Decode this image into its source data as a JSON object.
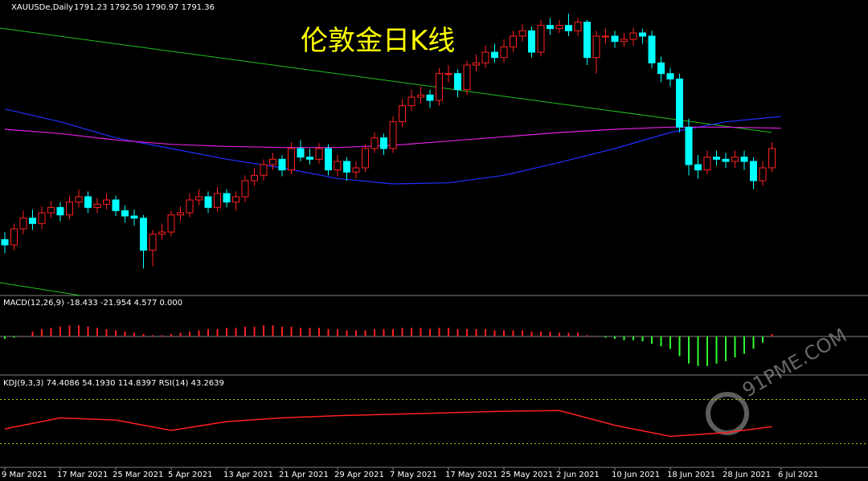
{
  "chart_data": {
    "type": "candlestick",
    "title": "伦敦金日K线",
    "symbol": "XAUUSDe,Daily",
    "quote": "1791.23 1792.50 1790.97 1791.36",
    "watermark": "91PME.COM",
    "categories": [
      "9 Mar 2021",
      "17 Mar 2021",
      "25 Mar 2021",
      "5 Apr 2021",
      "13 Apr 2021",
      "21 Apr 2021",
      "29 Apr 2021",
      "7 May 2021",
      "17 May 2021",
      "25 May 2021",
      "2 Jun 2021",
      "10 Jun 2021",
      "18 Jun 2021",
      "28 Jun 2021",
      "6 Jul 2021"
    ],
    "ylim": [
      1655,
      1925
    ],
    "up_color": "#ff2020",
    "down_color": "#00ffff",
    "open": [
      1705,
      1700,
      1715,
      1725,
      1720,
      1730,
      1735,
      1728,
      1740,
      1745,
      1735,
      1738,
      1742,
      1732,
      1727,
      1725,
      1695,
      1710,
      1712,
      1728,
      1730,
      1742,
      1745,
      1735,
      1748,
      1740,
      1745,
      1760,
      1765,
      1775,
      1780,
      1770,
      1790,
      1782,
      1780,
      1790,
      1770,
      1778,
      1768,
      1772,
      1790,
      1800,
      1790,
      1815,
      1830,
      1838,
      1840,
      1835,
      1860,
      1860,
      1845,
      1868,
      1870,
      1880,
      1875,
      1885,
      1895,
      1900,
      1880,
      1905,
      1902,
      1905,
      1900,
      1908,
      1875,
      1895,
      1895,
      1890,
      1892,
      1898,
      1895,
      1870,
      1860,
      1855,
      1810,
      1775,
      1770,
      1782,
      1780,
      1778,
      1782,
      1778,
      1760,
      1772
    ],
    "high": [
      1712,
      1720,
      1732,
      1733,
      1736,
      1741,
      1740,
      1746,
      1752,
      1750,
      1744,
      1748,
      1746,
      1737,
      1733,
      1728,
      1714,
      1720,
      1732,
      1736,
      1748,
      1752,
      1750,
      1754,
      1752,
      1750,
      1765,
      1772,
      1780,
      1786,
      1784,
      1796,
      1798,
      1790,
      1795,
      1794,
      1784,
      1782,
      1778,
      1794,
      1805,
      1804,
      1820,
      1836,
      1845,
      1848,
      1845,
      1865,
      1868,
      1864,
      1872,
      1878,
      1886,
      1888,
      1892,
      1900,
      1906,
      1904,
      1910,
      1912,
      1910,
      1916,
      1912,
      1910,
      1900,
      1902,
      1900,
      1898,
      1903,
      1902,
      1900,
      1876,
      1865,
      1860,
      1818,
      1784,
      1788,
      1788,
      1786,
      1788,
      1788,
      1782,
      1778,
      1796
    ],
    "low": [
      1692,
      1695,
      1710,
      1714,
      1715,
      1725,
      1722,
      1724,
      1735,
      1730,
      1730,
      1733,
      1727,
      1721,
      1718,
      1678,
      1680,
      1705,
      1708,
      1722,
      1726,
      1737,
      1730,
      1731,
      1735,
      1732,
      1740,
      1755,
      1760,
      1770,
      1764,
      1766,
      1778,
      1775,
      1776,
      1765,
      1764,
      1760,
      1762,
      1768,
      1786,
      1784,
      1786,
      1810,
      1825,
      1832,
      1828,
      1830,
      1852,
      1838,
      1840,
      1862,
      1865,
      1870,
      1870,
      1880,
      1890,
      1875,
      1876,
      1896,
      1898,
      1895,
      1895,
      1868,
      1860,
      1888,
      1884,
      1885,
      1886,
      1888,
      1865,
      1852,
      1848,
      1805,
      1765,
      1762,
      1766,
      1774,
      1772,
      1772,
      1770,
      1752,
      1755,
      1768
    ],
    "close": [
      1700,
      1715,
      1725,
      1720,
      1730,
      1735,
      1728,
      1740,
      1745,
      1735,
      1738,
      1742,
      1732,
      1727,
      1725,
      1695,
      1710,
      1712,
      1728,
      1730,
      1742,
      1745,
      1735,
      1748,
      1740,
      1745,
      1760,
      1765,
      1775,
      1780,
      1770,
      1790,
      1782,
      1780,
      1790,
      1770,
      1778,
      1768,
      1772,
      1790,
      1800,
      1790,
      1815,
      1830,
      1838,
      1840,
      1835,
      1860,
      1860,
      1845,
      1868,
      1870,
      1880,
      1875,
      1885,
      1895,
      1900,
      1880,
      1905,
      1902,
      1905,
      1900,
      1908,
      1875,
      1895,
      1895,
      1890,
      1892,
      1898,
      1895,
      1870,
      1860,
      1855,
      1810,
      1775,
      1770,
      1782,
      1780,
      1778,
      1782,
      1778,
      1760,
      1772,
      1790
    ],
    "ma_lines": [
      {
        "color": "#2030ff",
        "values": [
          1827,
          1815,
          1800,
          1790,
          1780,
          1772,
          1762,
          1757,
          1758,
          1765,
          1777,
          1790,
          1805,
          1815,
          1820
        ]
      },
      {
        "color": "#e020e0",
        "values": [
          1808,
          1804,
          1798,
          1794,
          1792,
          1791,
          1791,
          1793,
          1797,
          1801,
          1805,
          1808,
          1810,
          1810,
          1809
        ]
      }
    ],
    "macd": {
      "label": "MACD(12,26,9) -18.433 -21.954 4.577 0.000",
      "ylim": [
        -30,
        30
      ],
      "up_color": "#ff2020",
      "down_color": "#30ff30",
      "values": [
        -2,
        -1,
        0.5,
        4,
        6,
        7,
        8,
        9,
        9,
        8,
        7,
        6,
        5,
        4,
        3,
        2,
        1,
        1,
        2,
        3,
        4,
        5,
        6,
        6,
        7,
        7,
        8,
        8,
        9,
        9,
        8,
        8,
        7,
        7,
        7,
        6,
        6,
        5,
        5,
        5,
        6,
        6,
        6,
        7,
        7,
        7,
        6,
        7,
        7,
        6,
        6,
        6,
        6,
        5,
        5,
        5,
        5,
        4,
        4,
        4,
        3,
        3,
        3,
        1,
        0.5,
        -1,
        -2,
        -3,
        -3,
        -4,
        -6,
        -8,
        -10,
        -16,
        -22,
        -24,
        -24,
        -22,
        -20,
        -17,
        -14,
        -10,
        -5,
        2
      ]
    },
    "kdj": {
      "label": "KDJ(9,3,3) 74.4086 54.1930 114.8397 RSI(14) 43.2639",
      "ylim": [
        -10,
        110
      ],
      "yticks": [
        20,
        80
      ],
      "color": "#ff2020",
      "values": [
        40,
        55,
        52,
        38,
        50,
        55,
        58,
        60,
        62,
        64,
        65,
        45,
        30,
        35,
        43
      ]
    }
  }
}
